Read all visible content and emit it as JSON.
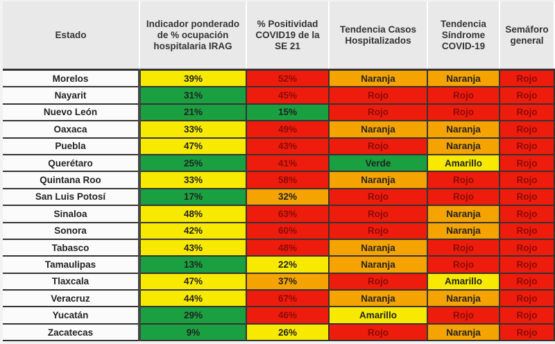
{
  "headers": [
    "Estado",
    "Indicador ponderado de % ocupación hospitalaria IRAG",
    "% Positividad COVID19 de la SE 21",
    "Tendencia Casos Hospitalizados",
    "Tendencia Síndrome COVID-19",
    "Semáforo general"
  ],
  "rows": [
    {
      "estado": "Morelos",
      "irag": "39%",
      "irag_color": "y",
      "pos": "52%",
      "pos_color": "r",
      "casos": "Naranja",
      "sindrome": "Naranja",
      "semaforo": "Rojo"
    },
    {
      "estado": "Nayarit",
      "irag": "31%",
      "irag_color": "g",
      "pos": "45%",
      "pos_color": "r",
      "casos": "Rojo",
      "sindrome": "Rojo",
      "semaforo": "Rojo"
    },
    {
      "estado": "Nuevo León",
      "irag": "21%",
      "irag_color": "g",
      "pos": "15%",
      "pos_color": "g",
      "casos": "Rojo",
      "sindrome": "Rojo",
      "semaforo": "Rojo"
    },
    {
      "estado": "Oaxaca",
      "irag": "33%",
      "irag_color": "y",
      "pos": "49%",
      "pos_color": "r",
      "casos": "Naranja",
      "sindrome": "Naranja",
      "semaforo": "Rojo"
    },
    {
      "estado": "Puebla",
      "irag": "47%",
      "irag_color": "y",
      "pos": "43%",
      "pos_color": "r",
      "casos": "Rojo",
      "sindrome": "Naranja",
      "semaforo": "Rojo"
    },
    {
      "estado": "Querétaro",
      "irag": "25%",
      "irag_color": "g",
      "pos": "41%",
      "pos_color": "r",
      "casos": "Verde",
      "sindrome": "Amarillo",
      "semaforo": "Rojo"
    },
    {
      "estado": "Quintana Roo",
      "irag": "33%",
      "irag_color": "y",
      "pos": "58%",
      "pos_color": "r",
      "casos": "Naranja",
      "sindrome": "Rojo",
      "semaforo": "Rojo"
    },
    {
      "estado": "San Luis Potosí",
      "irag": "17%",
      "irag_color": "g",
      "pos": "32%",
      "pos_color": "o",
      "casos": "Rojo",
      "sindrome": "Rojo",
      "semaforo": "Rojo"
    },
    {
      "estado": "Sinaloa",
      "irag": "48%",
      "irag_color": "y",
      "pos": "63%",
      "pos_color": "r",
      "casos": "Rojo",
      "sindrome": "Naranja",
      "semaforo": "Rojo"
    },
    {
      "estado": "Sonora",
      "irag": "42%",
      "irag_color": "y",
      "pos": "60%",
      "pos_color": "r",
      "casos": "Rojo",
      "sindrome": "Naranja",
      "semaforo": "Rojo"
    },
    {
      "estado": "Tabasco",
      "irag": "43%",
      "irag_color": "y",
      "pos": "48%",
      "pos_color": "r",
      "casos": "Naranja",
      "sindrome": "Rojo",
      "semaforo": "Rojo"
    },
    {
      "estado": "Tamaulipas",
      "irag": "13%",
      "irag_color": "g",
      "pos": "22%",
      "pos_color": "y",
      "casos": "Naranja",
      "sindrome": "Rojo",
      "semaforo": "Rojo"
    },
    {
      "estado": "Tlaxcala",
      "irag": "47%",
      "irag_color": "y",
      "pos": "37%",
      "pos_color": "o",
      "casos": "Rojo",
      "sindrome": "Amarillo",
      "semaforo": "Rojo"
    },
    {
      "estado": "Veracruz",
      "irag": "44%",
      "irag_color": "y",
      "pos": "67%",
      "pos_color": "r",
      "casos": "Naranja",
      "sindrome": "Naranja",
      "semaforo": "Rojo"
    },
    {
      "estado": "Yucatán",
      "irag": "29%",
      "irag_color": "g",
      "pos": "46%",
      "pos_color": "r",
      "casos": "Amarillo",
      "sindrome": "Rojo",
      "semaforo": "Rojo"
    },
    {
      "estado": "Zacatecas",
      "irag": "9%",
      "irag_color": "g",
      "pos": "26%",
      "pos_color": "y",
      "casos": "Rojo",
      "sindrome": "Naranja",
      "semaforo": "Rojo"
    }
  ]
}
